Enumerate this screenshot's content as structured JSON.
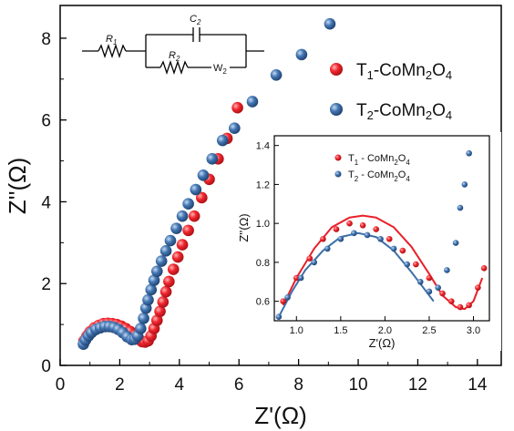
{
  "chart_data": [
    {
      "type": "scatter",
      "title": "",
      "xlabel": "Z'(Ω)",
      "ylabel": "Z''(Ω)",
      "xlim": [
        0,
        14.8
      ],
      "ylim": [
        0,
        8.8
      ],
      "xticks": [
        "0",
        "2",
        "4",
        "6",
        "8",
        "10",
        "12",
        "14"
      ],
      "yticks": [
        "0",
        "2",
        "4",
        "6",
        "8"
      ],
      "grid": false,
      "legend": "top-right",
      "colors": {
        "T1": "#e8202a",
        "T2": "#3c6fa8"
      },
      "series": [
        {
          "name": "T1-CoMn2O4",
          "x": [
            0.8,
            0.9,
            1.0,
            1.15,
            1.3,
            1.45,
            1.6,
            1.75,
            1.9,
            2.05,
            2.2,
            2.35,
            2.5,
            2.65,
            2.75,
            2.85,
            2.95,
            3.05,
            3.15,
            3.25,
            3.35,
            3.45,
            3.55,
            3.65,
            3.8,
            3.95,
            4.1,
            4.3,
            4.5,
            4.75,
            5.0,
            5.3,
            5.6,
            5.95
          ],
          "y": [
            0.6,
            0.72,
            0.82,
            0.92,
            0.98,
            1.02,
            1.03,
            1.02,
            1.0,
            0.96,
            0.9,
            0.83,
            0.74,
            0.64,
            0.58,
            0.57,
            0.6,
            0.72,
            0.9,
            1.1,
            1.32,
            1.55,
            1.8,
            2.05,
            2.35,
            2.65,
            2.95,
            3.3,
            3.65,
            4.1,
            4.55,
            5.05,
            5.55,
            6.3
          ]
        },
        {
          "name": "T2-CoMn2O4",
          "x": [
            0.78,
            0.85,
            0.95,
            1.05,
            1.2,
            1.35,
            1.5,
            1.65,
            1.8,
            1.95,
            2.1,
            2.25,
            2.4,
            2.5,
            2.6,
            2.7,
            2.8,
            2.88,
            2.95,
            3.05,
            3.15,
            3.25,
            3.4,
            3.55,
            3.7,
            3.9,
            4.1,
            4.3,
            4.55,
            4.8,
            5.1,
            5.45,
            5.85,
            6.45,
            7.25,
            8.1,
            9.05
          ],
          "y": [
            0.52,
            0.62,
            0.72,
            0.8,
            0.88,
            0.92,
            0.95,
            0.95,
            0.93,
            0.88,
            0.8,
            0.7,
            0.63,
            0.64,
            0.72,
            0.9,
            1.15,
            1.4,
            1.6,
            1.85,
            2.08,
            2.3,
            2.55,
            2.8,
            3.05,
            3.35,
            3.65,
            3.95,
            4.3,
            4.65,
            5.05,
            5.5,
            5.8,
            6.45,
            7.1,
            7.6,
            8.35
          ]
        }
      ]
    },
    {
      "type": "scatter",
      "title": "",
      "xlabel": "Z'(Ω)",
      "ylabel": "Z''(Ω)",
      "xlim": [
        0.75,
        3.18
      ],
      "ylim": [
        0.5,
        1.45
      ],
      "xticks": [
        "1.0",
        "1.5",
        "2.0",
        "2.5",
        "3.0"
      ],
      "yticks": [
        "0.6",
        "0.8",
        "1.0",
        "1.2",
        "1.4"
      ],
      "grid": false,
      "legend": "top-left",
      "series": [
        {
          "name": "T1 - CoMn2O4",
          "x": [
            0.85,
            1.0,
            1.15,
            1.3,
            1.45,
            1.6,
            1.75,
            1.9,
            2.05,
            2.2,
            2.35,
            2.5,
            2.65,
            2.75,
            2.85,
            2.95,
            3.05,
            3.12
          ],
          "y": [
            0.6,
            0.72,
            0.82,
            0.92,
            0.97,
            1.0,
            0.99,
            0.97,
            0.92,
            0.86,
            0.79,
            0.72,
            0.64,
            0.6,
            0.57,
            0.58,
            0.67,
            0.77
          ],
          "fit_x": [
            0.85,
            1.0,
            1.2,
            1.4,
            1.6,
            1.75,
            1.9,
            2.1,
            2.3,
            2.5,
            2.65,
            2.8,
            2.9,
            3.0,
            3.1
          ],
          "fit_y": [
            0.58,
            0.72,
            0.87,
            0.98,
            1.03,
            1.04,
            1.03,
            0.98,
            0.88,
            0.74,
            0.63,
            0.57,
            0.56,
            0.6,
            0.72
          ]
        },
        {
          "name": "T2 - CoMn2O4",
          "x": [
            0.8,
            0.9,
            1.05,
            1.2,
            1.35,
            1.5,
            1.65,
            1.8,
            1.95,
            2.1,
            2.25,
            2.4,
            2.5,
            2.6,
            2.7,
            2.8,
            2.85,
            2.9,
            2.95
          ],
          "y": [
            0.52,
            0.62,
            0.72,
            0.8,
            0.87,
            0.92,
            0.95,
            0.94,
            0.92,
            0.87,
            0.79,
            0.7,
            0.65,
            0.67,
            0.76,
            0.9,
            1.08,
            1.2,
            1.36
          ],
          "fit_x": [
            0.8,
            0.95,
            1.1,
            1.3,
            1.5,
            1.7,
            1.9,
            2.1,
            2.3,
            2.45,
            2.55
          ],
          "fit_y": [
            0.52,
            0.65,
            0.76,
            0.86,
            0.93,
            0.95,
            0.93,
            0.86,
            0.75,
            0.66,
            0.6
          ]
        }
      ]
    }
  ],
  "circuit": {
    "r1": "R",
    "r1_sub": "1",
    "c2": "C",
    "c2_sub": "2",
    "r2": "R",
    "r2_sub": "2",
    "w2": "W",
    "w2_sub": "2"
  }
}
